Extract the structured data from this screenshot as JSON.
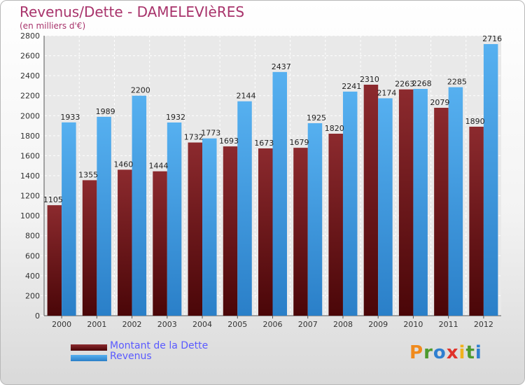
{
  "title": "Revenus/Dette - DAMELEVIèRES",
  "subtitle": "(en milliers d'€)",
  "legend": [
    {
      "label": "Montant de la Dette",
      "color": "#6b0f14"
    },
    {
      "label": "Revenus",
      "color": "#3d9be3"
    }
  ],
  "logo": {
    "letters": [
      "P",
      "r",
      "o",
      "x",
      "i",
      "t",
      "i"
    ],
    "colors": [
      "#f08a1c",
      "#4d9a2e",
      "#2f7fd0",
      "#e0322a",
      "#f0b21c",
      "#4d9a2e",
      "#2f7fd0"
    ]
  },
  "chart_data": {
    "type": "bar",
    "title": "Revenus/Dette - DAMELEVIèRES",
    "ylabel": "(en milliers d'€)",
    "xlabel": "",
    "ylim": [
      0,
      2800
    ],
    "ytick_step": 200,
    "grid": true,
    "categories": [
      "2000",
      "2001",
      "2002",
      "2003",
      "2004",
      "2005",
      "2006",
      "2007",
      "2008",
      "2009",
      "2010",
      "2011",
      "2012"
    ],
    "series": [
      {
        "name": "Montant de la Dette",
        "color": "#7a1a1e",
        "values": [
          1105,
          1355,
          1460,
          1444,
          1732,
          1693,
          1673,
          1679,
          1820,
          2310,
          2263,
          2079,
          1890
        ]
      },
      {
        "name": "Revenus",
        "color": "#3d9be3",
        "values": [
          1933,
          1989,
          2200,
          1932,
          1773,
          2144,
          2437,
          1925,
          2241,
          2174,
          2268,
          2285,
          2716
        ]
      }
    ]
  }
}
